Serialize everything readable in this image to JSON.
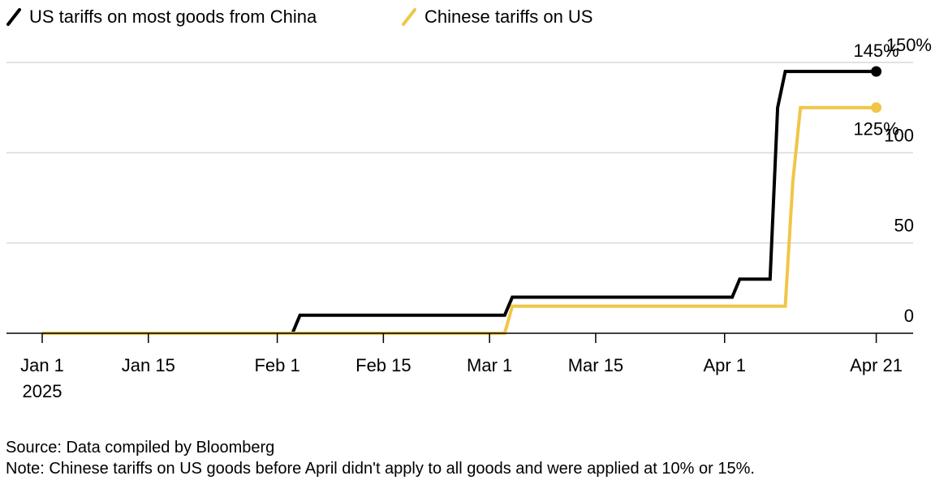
{
  "chart_data": {
    "type": "line",
    "title": "",
    "xlabel": "",
    "ylabel": "",
    "ylim": [
      0,
      150
    ],
    "xlim": [
      "2025-01-01",
      "2025-05-01"
    ],
    "grid": true,
    "legend_position": "top-left",
    "y_ticks": [
      {
        "value": 0,
        "label": "0"
      },
      {
        "value": 50,
        "label": "50"
      },
      {
        "value": 100,
        "label": "100"
      },
      {
        "value": 150,
        "label": "150%"
      }
    ],
    "x_ticks": [
      {
        "date": "2025-01-01",
        "label": "Jan 1",
        "label2": "2025"
      },
      {
        "date": "2025-01-15",
        "label": "Jan 15",
        "label2": ""
      },
      {
        "date": "2025-02-01",
        "label": "Feb 1",
        "label2": ""
      },
      {
        "date": "2025-02-15",
        "label": "Feb 15",
        "label2": ""
      },
      {
        "date": "2025-03-01",
        "label": "Mar 1",
        "label2": ""
      },
      {
        "date": "2025-03-15",
        "label": "Mar 15",
        "label2": ""
      },
      {
        "date": "2025-04-01",
        "label": "Apr 1",
        "label2": ""
      },
      {
        "date": "2025-04-21",
        "label": "Apr 21",
        "label2": ""
      }
    ],
    "series": [
      {
        "name": "US tariffs on most goods from China",
        "color": "#000000",
        "points": [
          [
            "2025-01-01",
            0
          ],
          [
            "2025-02-03",
            0
          ],
          [
            "2025-02-04",
            10
          ],
          [
            "2025-03-03",
            10
          ],
          [
            "2025-03-04",
            20
          ],
          [
            "2025-04-02",
            20
          ],
          [
            "2025-04-03",
            30
          ],
          [
            "2025-04-07",
            30
          ],
          [
            "2025-04-08",
            125
          ],
          [
            "2025-04-09",
            145
          ],
          [
            "2025-04-21",
            145
          ]
        ],
        "end_label": "145%"
      },
      {
        "name": "Chinese tariffs on US",
        "color": "#f0c647",
        "points": [
          [
            "2025-01-01",
            0
          ],
          [
            "2025-03-03",
            0
          ],
          [
            "2025-03-04",
            15
          ],
          [
            "2025-04-09",
            15
          ],
          [
            "2025-04-10",
            84
          ],
          [
            "2025-04-11",
            125
          ],
          [
            "2025-04-21",
            125
          ]
        ],
        "end_label": "125%"
      }
    ]
  },
  "footer": {
    "source": "Source: Data compiled by Bloomberg",
    "note": "Note: Chinese tariffs on US goods before April didn't apply to all goods and were applied at 10% or 15%."
  },
  "colors": {
    "grid": "#d9d9d9",
    "axis": "#000000"
  }
}
